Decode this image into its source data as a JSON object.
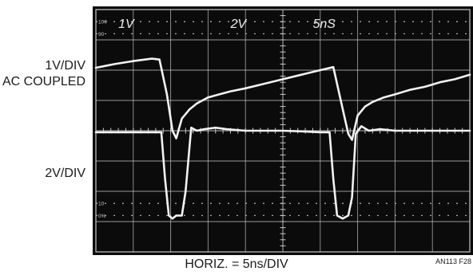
{
  "labels": {
    "ch1_scale": "1V/DIV",
    "ch1_coupling": "AC COUPLED",
    "ch2_scale": "2V/DIV",
    "horizontal": "HORIZ. = 5ns/DIV",
    "figure_id": "AN113 F28"
  },
  "screen": {
    "readouts": [
      "1V",
      "2V",
      "5nS"
    ],
    "graticule_marks": [
      "100",
      "90",
      "10",
      "0%"
    ]
  },
  "chart_data": {
    "type": "line",
    "title": "",
    "xlabel": "HORIZ. = 5ns/DIV",
    "x_units": "divisions",
    "xlim": [
      0,
      10
    ],
    "ylim": [
      -4,
      4
    ],
    "grid": true,
    "background": "#0b0b0b",
    "trace_color": "#f2f2f2",
    "series": [
      {
        "name": "",
        "channel": "1V/DIV AC COUPLED",
        "x": [
          0,
          0.5,
          1.0,
          1.5,
          1.7,
          1.9,
          2.05,
          2.15,
          2.3,
          2.5,
          2.7,
          3.0,
          3.3,
          3.6,
          4.0,
          4.5,
          5.0,
          5.5,
          6.0,
          6.35,
          6.55,
          6.75,
          6.85,
          7.0,
          7.2,
          7.4,
          7.7,
          8.0,
          8.4,
          8.8,
          9.2,
          9.6,
          10.0
        ],
        "y": [
          2.08,
          2.2,
          2.3,
          2.38,
          2.35,
          1.2,
          0.0,
          -0.25,
          0.4,
          0.7,
          0.9,
          1.1,
          1.2,
          1.3,
          1.4,
          1.55,
          1.7,
          1.85,
          2.0,
          2.1,
          1.0,
          -0.1,
          -0.3,
          0.5,
          0.8,
          0.95,
          1.1,
          1.2,
          1.35,
          1.45,
          1.6,
          1.7,
          1.85
        ]
      },
      {
        "name": "",
        "channel": "2V/DIV",
        "x": [
          0,
          0.5,
          1.0,
          1.5,
          1.75,
          1.85,
          1.95,
          2.05,
          2.15,
          2.3,
          2.4,
          2.55,
          2.7,
          2.9,
          3.2,
          3.5,
          4.0,
          4.5,
          5.0,
          5.5,
          6.0,
          6.25,
          6.35,
          6.45,
          6.6,
          6.75,
          6.85,
          6.95,
          7.1,
          7.3,
          7.6,
          8.0,
          9.0,
          10.0
        ],
        "y": [
          -0.05,
          -0.05,
          -0.05,
          -0.05,
          -0.05,
          -1.6,
          -2.8,
          -2.9,
          -2.8,
          -2.8,
          -2.0,
          0.1,
          0.0,
          0.05,
          0.1,
          0.05,
          0.0,
          0.0,
          0.0,
          -0.02,
          -0.05,
          -0.05,
          -1.6,
          -2.8,
          -2.9,
          -2.8,
          -2.2,
          -0.1,
          0.15,
          0.0,
          0.05,
          0.0,
          0.0,
          0.0
        ]
      }
    ]
  }
}
